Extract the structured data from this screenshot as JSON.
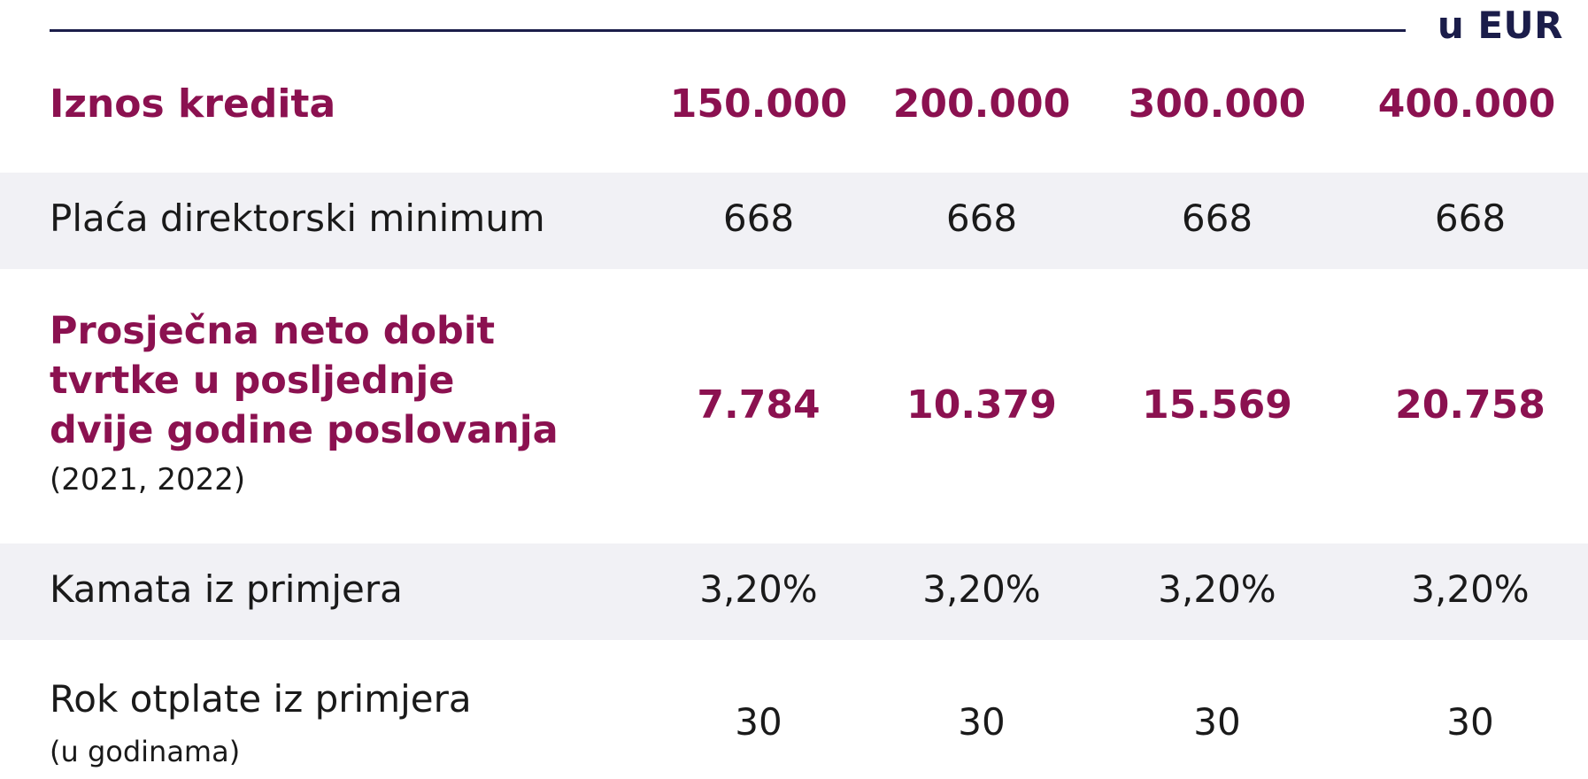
{
  "unit_label": "u EUR",
  "header": {
    "label": "Iznos kredita",
    "values": [
      "150.000",
      "200.000",
      "300.000",
      "400.000"
    ]
  },
  "rows": [
    {
      "label": "Plaća direktorski minimum",
      "values": [
        "668",
        "668",
        "668",
        "668"
      ]
    },
    {
      "label_lines": [
        "Prosječna neto dobit",
        "tvrtke u posljednje",
        "dvije godine poslovanja"
      ],
      "sub": "(2021, 2022)",
      "values": [
        "7.784",
        "10.379",
        "15.569",
        "20.758"
      ]
    },
    {
      "label": "Kamata iz primjera",
      "values": [
        "3,20%",
        "3,20%",
        "3,20%",
        "3,20%"
      ]
    },
    {
      "label": "Rok otplate iz primjera",
      "sub": "(u godinama)",
      "values": [
        "30",
        "30",
        "30",
        "30"
      ]
    }
  ],
  "colors": {
    "accent": "#8b1150",
    "navy": "#1b1d4a",
    "shade": "#f1f1f5",
    "text": "#1a1a1a"
  }
}
